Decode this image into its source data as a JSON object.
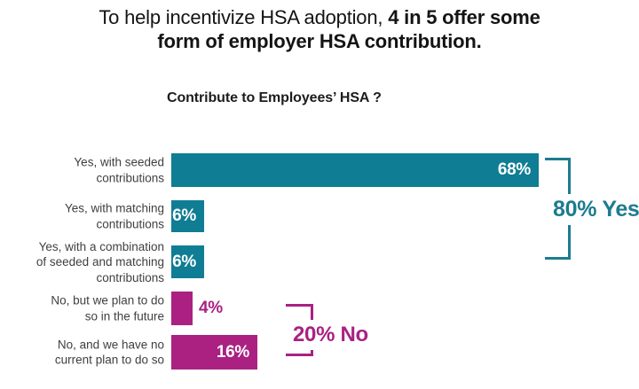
{
  "title": {
    "line1_regular": "To help incentivize HSA adoption, ",
    "line1_bold": "4 in 5 offer some",
    "line2_bold": "form of employer HSA contribution."
  },
  "subtitle": "Contribute to Employees’ HSA ?",
  "chart_data": {
    "type": "bar",
    "orientation": "horizontal",
    "title": "Contribute to Employees’ HSA ?",
    "categories": [
      "Yes, with seeded contributions",
      "Yes, with matching contributions",
      "Yes, with a combination of seeded and matching contributions",
      "No, but we plan to do so in the future",
      "No, and we have no current plan to do so"
    ],
    "label_lines": [
      [
        "Yes, with seeded",
        "contributions"
      ],
      [
        "Yes, with matching",
        "contributions"
      ],
      [
        "Yes, with a combination",
        "of seeded and matching",
        "contributions"
      ],
      [
        "No, but we plan to do",
        "so in the future"
      ],
      [
        "No, and we have no",
        "current plan to do so"
      ]
    ],
    "values": [
      68,
      6,
      6,
      4,
      16
    ],
    "value_labels": [
      "68%",
      "6%",
      "6%",
      "4%",
      "16%"
    ],
    "series_colors": [
      "teal",
      "teal",
      "teal",
      "magenta",
      "magenta"
    ],
    "label_placement": [
      "inside",
      "inside",
      "inside",
      "outside",
      "inside"
    ],
    "xlim": [
      0,
      70
    ],
    "grid": false,
    "legend": false,
    "colors": {
      "teal": "#0f7d93",
      "magenta": "#aa2182",
      "label_gray": "#3f3f3f",
      "title_black": "#141414"
    },
    "annotations": [
      {
        "text": "80% Yes",
        "group": "yes",
        "color": "#1d7b8f"
      },
      {
        "text": "20% No",
        "group": "no",
        "color": "#a92183"
      }
    ]
  }
}
